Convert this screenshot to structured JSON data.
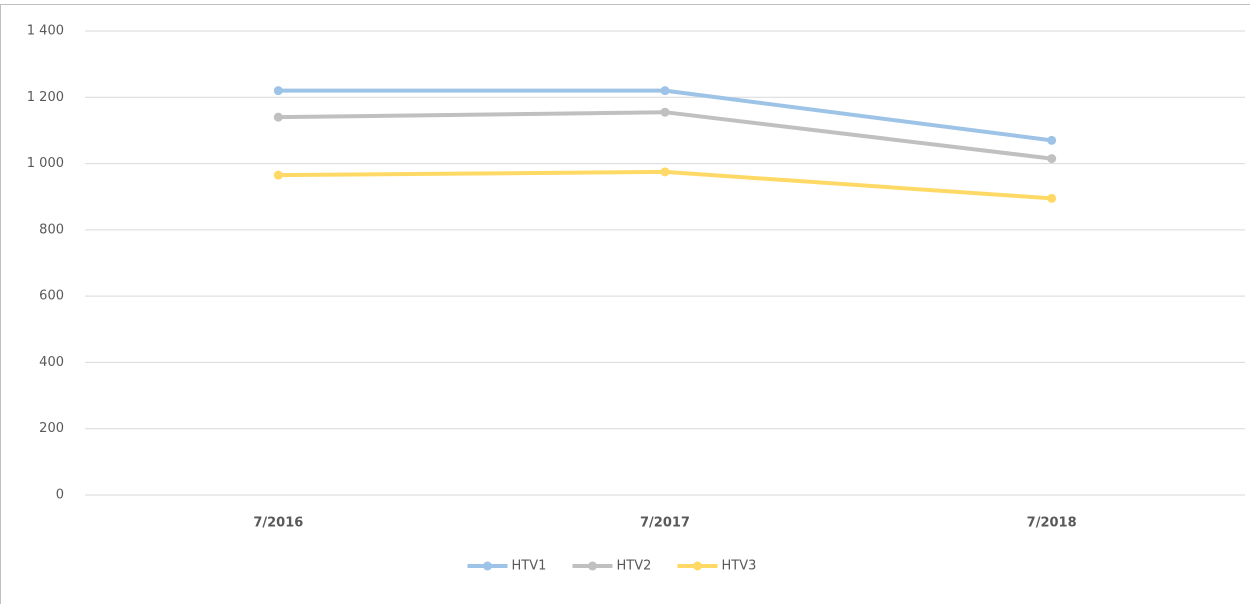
{
  "chart_data": {
    "type": "line",
    "categories": [
      "7/2016",
      "7/2017",
      "7/2018"
    ],
    "series": [
      {
        "name": "HTV1",
        "color": "#9dc3e6",
        "values": [
          1220,
          1220,
          1070
        ]
      },
      {
        "name": "HTV2",
        "color": "#c0c0c0",
        "values": [
          1140,
          1155,
          1015
        ]
      },
      {
        "name": "HTV3",
        "color": "#ffd966",
        "values": [
          965,
          975,
          895
        ]
      }
    ],
    "ylim": [
      0,
      1400
    ],
    "yticks": [
      0,
      200,
      400,
      600,
      800,
      {
        "value": 1000,
        "label": "1 000"
      },
      {
        "value": 1200,
        "label": "1 200"
      },
      {
        "value": 1400,
        "label": "1 400"
      }
    ],
    "grid": true,
    "legend": "bottom"
  }
}
